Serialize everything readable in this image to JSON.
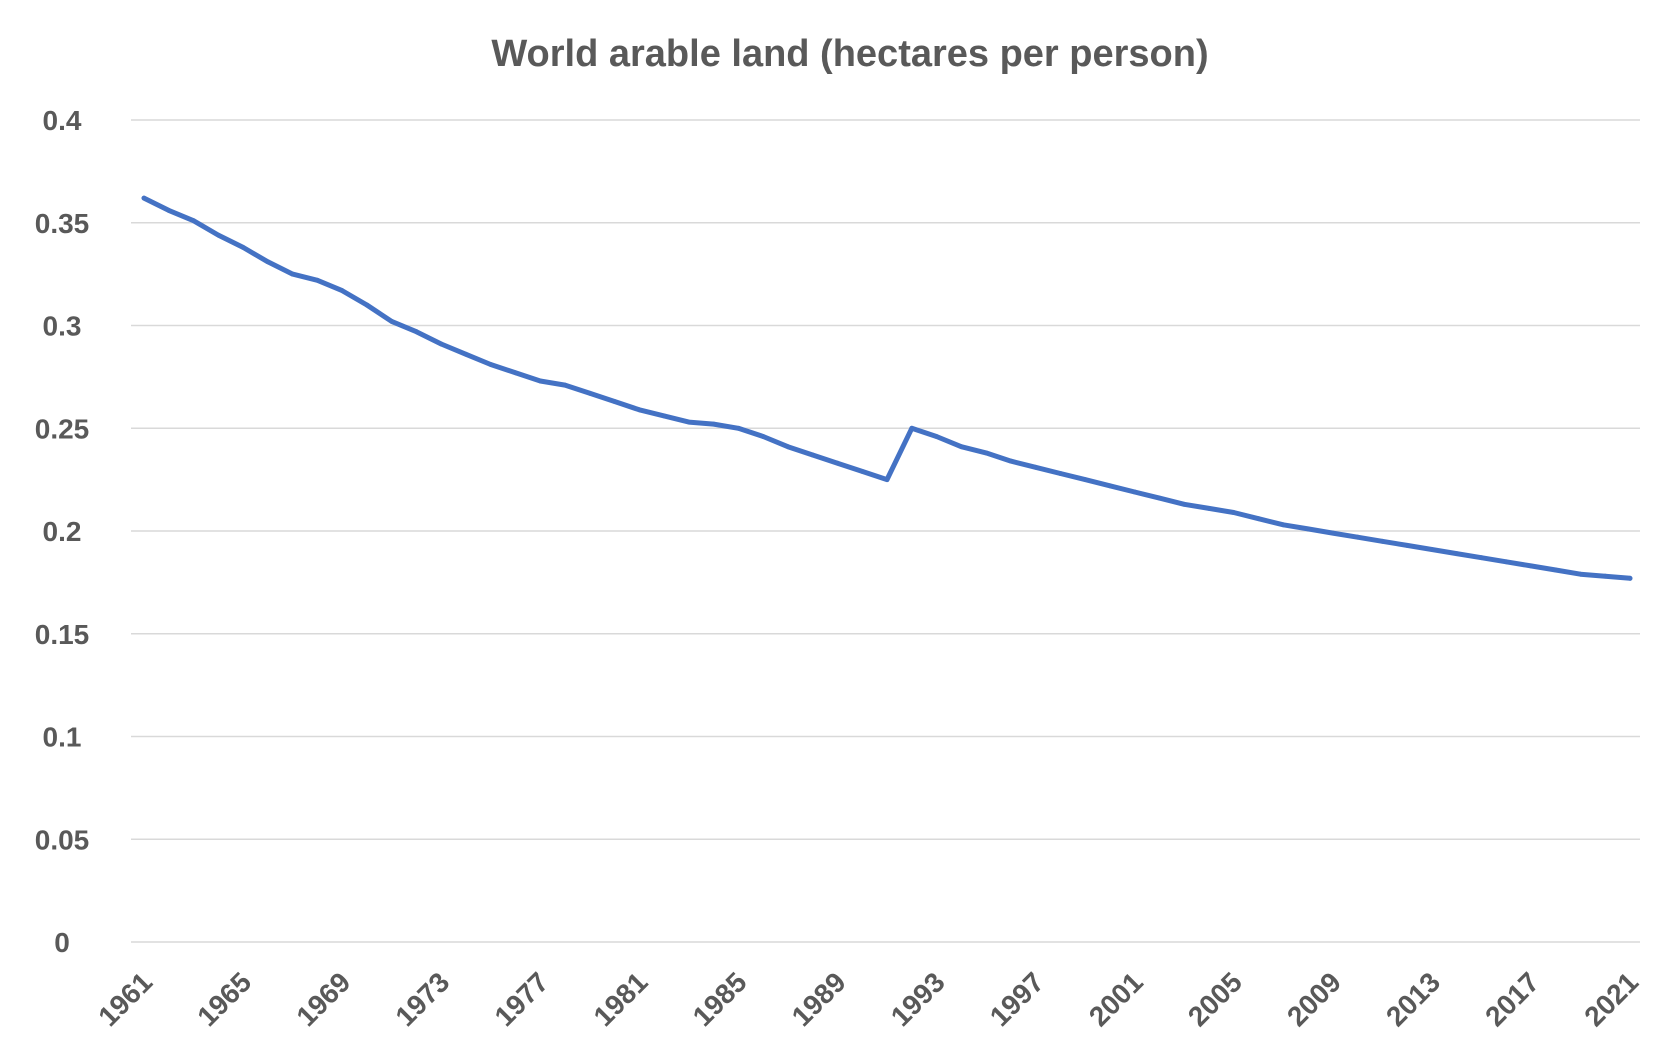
{
  "chart_data": {
    "type": "line",
    "title": "World arable land (hectares per person)",
    "xlabel": "",
    "ylabel": "",
    "ylim": [
      0,
      0.4
    ],
    "y_ticks": [
      0,
      0.05,
      0.1,
      0.15,
      0.2,
      0.25,
      0.3,
      0.35,
      0.4
    ],
    "y_tick_labels": [
      "0",
      "0.05",
      "0.1",
      "0.15",
      "0.2",
      "0.25",
      "0.3",
      "0.35",
      "0.4"
    ],
    "x_tick_labels": [
      "1961",
      "1965",
      "1969",
      "1973",
      "1977",
      "1981",
      "1985",
      "1989",
      "1993",
      "1997",
      "2001",
      "2005",
      "2009",
      "2013",
      "2017",
      "2021"
    ],
    "grid": true,
    "legend": "none",
    "x": [
      1961,
      1962,
      1963,
      1964,
      1965,
      1966,
      1967,
      1968,
      1969,
      1970,
      1971,
      1972,
      1973,
      1974,
      1975,
      1976,
      1977,
      1978,
      1979,
      1980,
      1981,
      1982,
      1983,
      1984,
      1985,
      1986,
      1987,
      1988,
      1989,
      1990,
      1991,
      1992,
      1993,
      1994,
      1995,
      1996,
      1997,
      1998,
      1999,
      2000,
      2001,
      2002,
      2003,
      2004,
      2005,
      2006,
      2007,
      2008,
      2009,
      2010,
      2011,
      2012,
      2013,
      2014,
      2015,
      2016,
      2017,
      2018,
      2019,
      2020,
      2021
    ],
    "series": [
      {
        "color": "#4472c4",
        "values": [
          0.362,
          0.356,
          0.351,
          0.344,
          0.338,
          0.331,
          0.325,
          0.322,
          0.317,
          0.31,
          0.302,
          0.297,
          0.291,
          0.286,
          0.281,
          0.277,
          0.273,
          0.271,
          0.267,
          0.263,
          0.259,
          0.256,
          0.253,
          0.252,
          0.25,
          0.246,
          0.241,
          0.237,
          0.233,
          0.229,
          0.225,
          0.25,
          0.246,
          0.241,
          0.238,
          0.234,
          0.231,
          0.228,
          0.225,
          0.222,
          0.219,
          0.216,
          0.213,
          0.211,
          0.209,
          0.206,
          0.203,
          0.201,
          0.199,
          0.197,
          0.195,
          0.193,
          0.191,
          0.189,
          0.187,
          0.185,
          0.183,
          0.181,
          0.179,
          0.178,
          0.177
        ]
      }
    ]
  }
}
